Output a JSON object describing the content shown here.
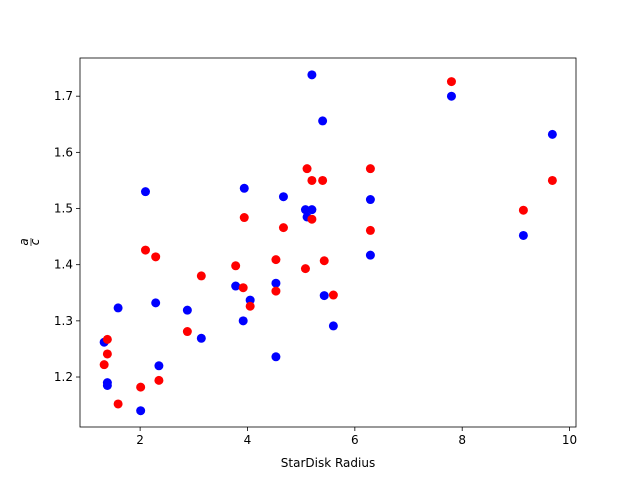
{
  "chart_data": {
    "type": "scatter",
    "title": "",
    "xlabel": "StarDisk Radius",
    "ylabel_numerator": "a",
    "ylabel_denominator": "c",
    "xlim": [
      0.88,
      10.12
    ],
    "ylim": [
      1.111,
      1.768
    ],
    "xticks": [
      2,
      4,
      6,
      8,
      10
    ],
    "yticks": [
      1.2,
      1.3,
      1.4,
      1.5,
      1.6,
      1.7
    ],
    "grid": false,
    "legend": "none",
    "series": [
      {
        "color": "#0000ff",
        "points": [
          [
            1.33,
            1.262
          ],
          [
            1.39,
            1.19
          ],
          [
            1.39,
            1.185
          ],
          [
            1.59,
            1.323
          ],
          [
            2.01,
            1.14
          ],
          [
            2.1,
            1.53
          ],
          [
            2.29,
            1.332
          ],
          [
            2.35,
            1.22
          ],
          [
            2.88,
            1.319
          ],
          [
            3.14,
            1.269
          ],
          [
            3.78,
            1.362
          ],
          [
            3.92,
            1.3
          ],
          [
            3.94,
            1.536
          ],
          [
            4.05,
            1.337
          ],
          [
            4.53,
            1.367
          ],
          [
            4.53,
            1.236
          ],
          [
            4.67,
            1.521
          ],
          [
            5.08,
            1.498
          ],
          [
            5.11,
            1.485
          ],
          [
            5.2,
            1.498
          ],
          [
            5.2,
            1.738
          ],
          [
            5.4,
            1.656
          ],
          [
            5.43,
            1.345
          ],
          [
            5.6,
            1.291
          ],
          [
            6.29,
            1.516
          ],
          [
            6.29,
            1.417
          ],
          [
            7.8,
            1.7
          ],
          [
            9.14,
            1.452
          ],
          [
            9.68,
            1.632
          ]
        ]
      },
      {
        "color": "#ff0000",
        "points": [
          [
            1.33,
            1.222
          ],
          [
            1.39,
            1.267
          ],
          [
            1.39,
            1.241
          ],
          [
            1.59,
            1.152
          ],
          [
            2.01,
            1.182
          ],
          [
            2.1,
            1.426
          ],
          [
            2.29,
            1.414
          ],
          [
            2.35,
            1.194
          ],
          [
            2.88,
            1.281
          ],
          [
            3.14,
            1.38
          ],
          [
            3.78,
            1.398
          ],
          [
            3.92,
            1.359
          ],
          [
            3.94,
            1.484
          ],
          [
            4.05,
            1.326
          ],
          [
            4.53,
            1.409
          ],
          [
            4.53,
            1.353
          ],
          [
            4.67,
            1.466
          ],
          [
            5.08,
            1.393
          ],
          [
            5.11,
            1.571
          ],
          [
            5.2,
            1.481
          ],
          [
            5.2,
            1.55
          ],
          [
            5.4,
            1.55
          ],
          [
            5.43,
            1.407
          ],
          [
            5.6,
            1.346
          ],
          [
            6.29,
            1.571
          ],
          [
            6.29,
            1.461
          ],
          [
            7.8,
            1.726
          ],
          [
            9.14,
            1.497
          ],
          [
            9.68,
            1.55
          ]
        ]
      }
    ]
  }
}
